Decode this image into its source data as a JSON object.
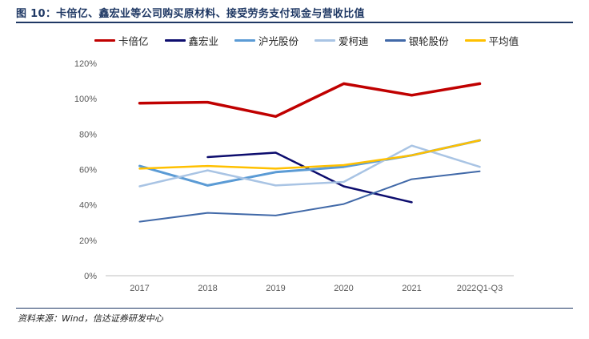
{
  "figure": {
    "title": "图 10：卡倍亿、鑫宏业等公司购买原材料、接受劳务支付现金与营收比值",
    "source": "资料来源：Wind，信达证券研发中心"
  },
  "chart_data": {
    "type": "line",
    "categories": [
      "2017",
      "2018",
      "2019",
      "2020",
      "2021",
      "2022Q1-Q3"
    ],
    "yticks": [
      "0%",
      "20%",
      "40%",
      "60%",
      "80%",
      "100%",
      "120%"
    ],
    "ylim": [
      0,
      120
    ],
    "grid": false,
    "legend_position": "top",
    "series": [
      {
        "name": "卡倍亿",
        "color": "#c00000",
        "width": 3.5,
        "values": [
          97.5,
          98,
          90,
          108.5,
          102,
          108.5
        ]
      },
      {
        "name": "鑫宏业",
        "color": "#0d0d6e",
        "width": 2.5,
        "values": [
          null,
          67,
          69.5,
          50.5,
          41.5,
          null
        ]
      },
      {
        "name": "沪光股份",
        "color": "#5b9bd5",
        "width": 3,
        "values": [
          62,
          51,
          58.5,
          61.5,
          68,
          76.5
        ]
      },
      {
        "name": "爱柯迪",
        "color": "#a9c4e4",
        "width": 2.5,
        "values": [
          50.5,
          59.5,
          51,
          53,
          73.5,
          61.5
        ]
      },
      {
        "name": "银轮股份",
        "color": "#4169a8",
        "width": 2,
        "values": [
          30.5,
          35.5,
          34,
          40.5,
          54.5,
          59
        ]
      },
      {
        "name": "平均值",
        "color": "#ffc000",
        "width": 2.5,
        "values": [
          60.5,
          62,
          60.5,
          62.5,
          68,
          76.5
        ]
      }
    ]
  }
}
